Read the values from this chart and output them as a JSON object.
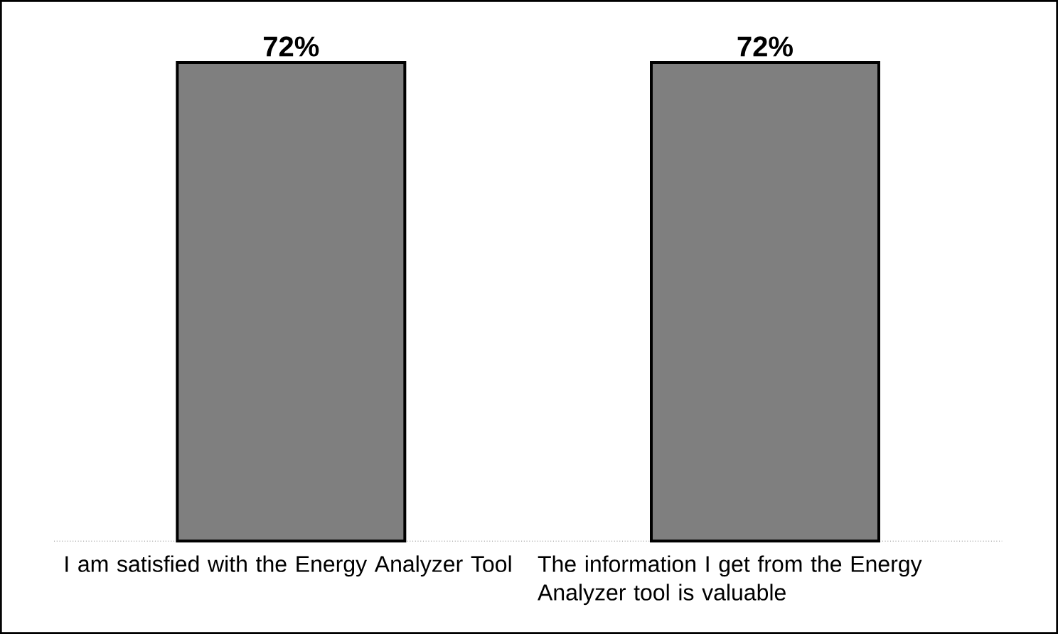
{
  "chart_data": {
    "type": "bar",
    "categories": [
      "I am satisfied with the Energy Analyzer Tool",
      "The information I get from the Energy Analyzer tool is valuable"
    ],
    "values": [
      72,
      72
    ],
    "value_labels": [
      "72%",
      "72%"
    ],
    "color": "#7f7f7f"
  }
}
